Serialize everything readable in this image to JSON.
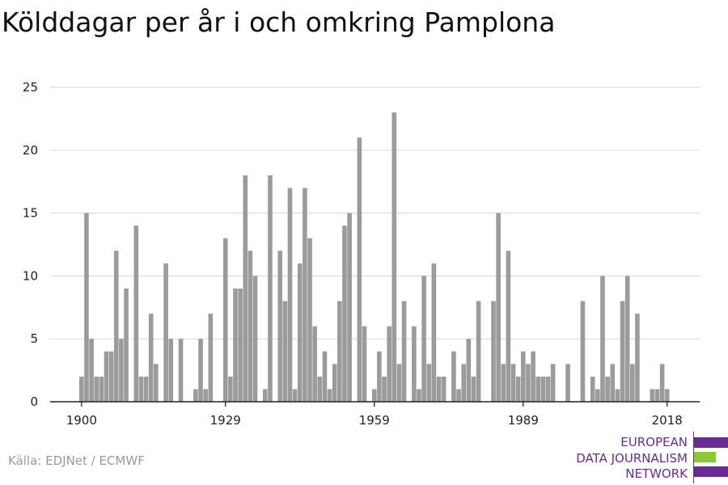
{
  "title": "Kölddagar per år i och omkring Pamplona",
  "source": "Källa: EDJNet / ECMWF",
  "logo": {
    "lines": [
      "EUROPEAN",
      "DATA JOURNALISM",
      "NETWORK"
    ],
    "colors": {
      "purple": "#6a2c91",
      "green": "#8dc63f"
    }
  },
  "colors": {
    "bar": "#9b9b9b",
    "grid": "#dddddd",
    "axis": "#222222"
  },
  "chart_data": {
    "type": "bar",
    "title": "Kölddagar per år i och omkring Pamplona",
    "xlabel": "",
    "ylabel": "",
    "ylim": [
      0,
      25
    ],
    "yticks": [
      0,
      5,
      10,
      15,
      20,
      25
    ],
    "xticks": [
      1900,
      1929,
      1959,
      1989,
      2018
    ],
    "grid": true,
    "categories": [
      1900,
      1901,
      1902,
      1903,
      1904,
      1905,
      1906,
      1907,
      1908,
      1909,
      1910,
      1911,
      1912,
      1913,
      1914,
      1915,
      1916,
      1917,
      1918,
      1919,
      1920,
      1921,
      1922,
      1923,
      1924,
      1925,
      1926,
      1927,
      1928,
      1929,
      1930,
      1931,
      1932,
      1933,
      1934,
      1935,
      1936,
      1937,
      1938,
      1939,
      1940,
      1941,
      1942,
      1943,
      1944,
      1945,
      1946,
      1947,
      1948,
      1949,
      1950,
      1951,
      1952,
      1953,
      1954,
      1955,
      1956,
      1957,
      1958,
      1959,
      1960,
      1961,
      1962,
      1963,
      1964,
      1965,
      1966,
      1967,
      1968,
      1969,
      1970,
      1971,
      1972,
      1973,
      1974,
      1975,
      1976,
      1977,
      1978,
      1979,
      1980,
      1981,
      1982,
      1983,
      1984,
      1985,
      1986,
      1987,
      1988,
      1989,
      1990,
      1991,
      1992,
      1993,
      1994,
      1995,
      1996,
      1997,
      1998,
      1999,
      2000,
      2001,
      2002,
      2003,
      2004,
      2005,
      2006,
      2007,
      2008,
      2009,
      2010,
      2011,
      2012,
      2013,
      2014,
      2015,
      2016,
      2017,
      2018
    ],
    "values": [
      2,
      15,
      5,
      2,
      2,
      4,
      4,
      12,
      5,
      9,
      0,
      14,
      2,
      2,
      7,
      3,
      0,
      11,
      5,
      0,
      5,
      0,
      0,
      1,
      5,
      1,
      7,
      0,
      0,
      13,
      2,
      9,
      9,
      18,
      12,
      10,
      0,
      1,
      18,
      0,
      12,
      8,
      17,
      1,
      11,
      17,
      13,
      6,
      2,
      4,
      1,
      3,
      8,
      14,
      15,
      0,
      21,
      6,
      0,
      1,
      4,
      2,
      6,
      23,
      3,
      8,
      0,
      6,
      1,
      10,
      3,
      11,
      2,
      2,
      0,
      4,
      1,
      3,
      5,
      2,
      8,
      0,
      0,
      8,
      15,
      3,
      12,
      3,
      2,
      4,
      3,
      4,
      2,
      2,
      2,
      3,
      0,
      0,
      3,
      0,
      0,
      8,
      0,
      2,
      1,
      10,
      2,
      3,
      1,
      8,
      10,
      3,
      7,
      0,
      0,
      1,
      1,
      3,
      1
    ]
  }
}
